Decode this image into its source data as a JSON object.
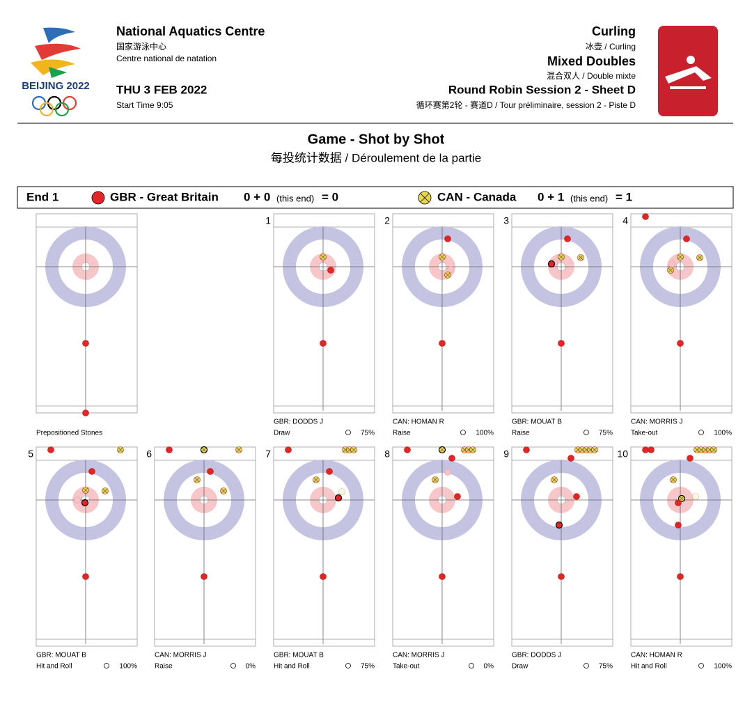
{
  "header": {
    "logo_text": "BEIJING 2022",
    "venue": "National Aquatics Centre",
    "venue_zh": "国家游泳中心",
    "venue_fr": "Centre national de natation",
    "date": "THU 3 FEB 2022",
    "start_time": "Start Time  9:05",
    "sport": "Curling",
    "sport_sub": "冰壶 / Curling",
    "event": "Mixed Doubles",
    "event_sub": "混合双人 / Double mixte",
    "session": "Round Robin Session 2 - Sheet D",
    "session_sub": "循环赛第2轮 - 赛道D / Tour préliminaire, session 2 - Piste D"
  },
  "title": "Game - Shot by Shot",
  "subtitle": "每投统计数据 / Déroulement de la partie",
  "end_bar": {
    "end": "End 1",
    "team1": {
      "name": "GBR - Great Britain",
      "score": "0 + 0",
      "this_end": "(this end)",
      "total": "= 0"
    },
    "team2": {
      "name": "CAN - Canada",
      "score": "0 + 1",
      "this_end": "(this end)",
      "total": "= 1"
    }
  },
  "panels": [
    {
      "label": "Prepositioned Stones"
    },
    {
      "number": "1",
      "player": "GBR: DODDS J",
      "shot": "Draw",
      "percent": "75%"
    },
    {
      "number": "2",
      "player": "CAN: HOMAN R",
      "shot": "Raise",
      "percent": "100%"
    },
    {
      "number": "3",
      "player": "GBR: MOUAT B",
      "shot": "Raise",
      "percent": "75%"
    },
    {
      "number": "4",
      "player": "CAN: MORRIS J",
      "shot": "Take-out",
      "percent": "100%"
    },
    {
      "number": "5",
      "player": "GBR: MOUAT B",
      "shot": "Hit and Roll",
      "percent": "100%"
    },
    {
      "number": "6",
      "player": "CAN: MORRIS J",
      "shot": "Raise",
      "percent": "0%"
    },
    {
      "number": "7",
      "player": "GBR: MOUAT B",
      "shot": "Hit and Roll",
      "percent": "75%"
    },
    {
      "number": "8",
      "player": "CAN: MORRIS J",
      "shot": "Take-out",
      "percent": "0%"
    },
    {
      "number": "9",
      "player": "GBR: DODDS J",
      "shot": "Draw",
      "percent": "75%"
    },
    {
      "number": "10",
      "player": "CAN: HOMAN R",
      "shot": "Hit and Roll",
      "percent": "100%"
    }
  ]
}
